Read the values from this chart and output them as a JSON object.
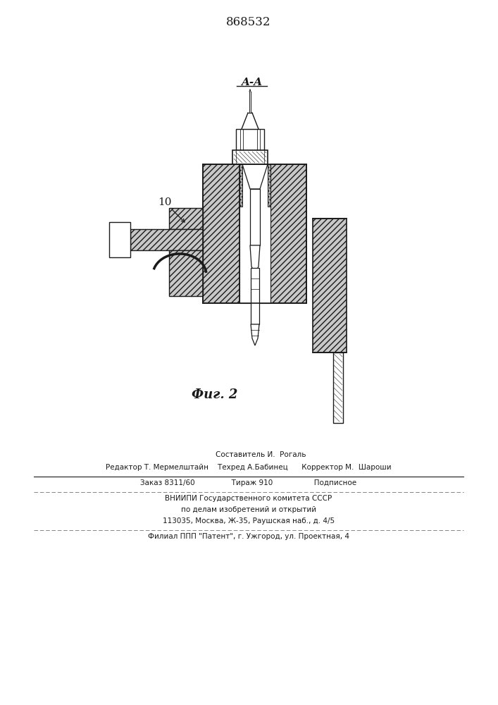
{
  "title_number": "868532",
  "section_label": "A-A",
  "fig_label": "Фиг. 2",
  "label_10": "10",
  "background_color": "#ffffff",
  "line_color": "#1a1a1a",
  "footer_lines": [
    "Составитель И.  Рогаль",
    "Редактор Т. Мермелштайн    Техред А.Бабинец      Корректор М.  Шароши",
    "Заказ 8311/60                Тираж 910                  Подписное",
    "ВНИИПИ Государственного комитета СССР",
    "по делам изобретений и открытий",
    "113035, Москва, Ж-35, Раушская наб., д. 4/5",
    "Филиал ППП \"Патент\", г. Ужгород, ул. Проектная, 4"
  ]
}
